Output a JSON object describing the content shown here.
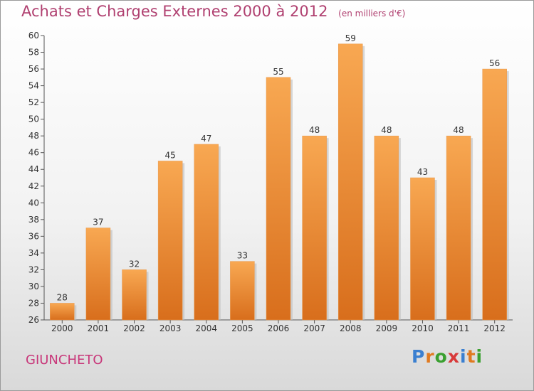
{
  "title": "Achats et Charges Externes 2000 à 2012",
  "unit": "(en milliers d'€)",
  "commune": "GIUNCHETO",
  "logo": {
    "letters": [
      "P",
      "r",
      "o",
      "x",
      "i",
      "t",
      "i"
    ],
    "colors": [
      "#3a7fd0",
      "#e07a20",
      "#3aa030",
      "#d83a3a",
      "#3a7fd0",
      "#e07a20",
      "#3aa030"
    ]
  },
  "colors": {
    "bar_top": "#f8a852",
    "bar_bottom": "#d86e1c",
    "title": "#b04070",
    "commune": "#c8387a"
  },
  "chart_data": {
    "type": "bar",
    "categories": [
      "2000",
      "2001",
      "2002",
      "2003",
      "2004",
      "2005",
      "2006",
      "2007",
      "2008",
      "2009",
      "2010",
      "2011",
      "2012"
    ],
    "values": [
      28,
      37,
      32,
      45,
      47,
      33,
      55,
      48,
      59,
      48,
      43,
      48,
      56
    ],
    "title": "Achats et Charges Externes 2000 à 2012",
    "xlabel": "",
    "ylabel": "",
    "ylim": [
      26,
      60
    ],
    "yticks": [
      26,
      28,
      30,
      32,
      34,
      36,
      38,
      40,
      42,
      44,
      46,
      48,
      50,
      52,
      54,
      56,
      58,
      60
    ],
    "grid": false,
    "legend": "none"
  }
}
